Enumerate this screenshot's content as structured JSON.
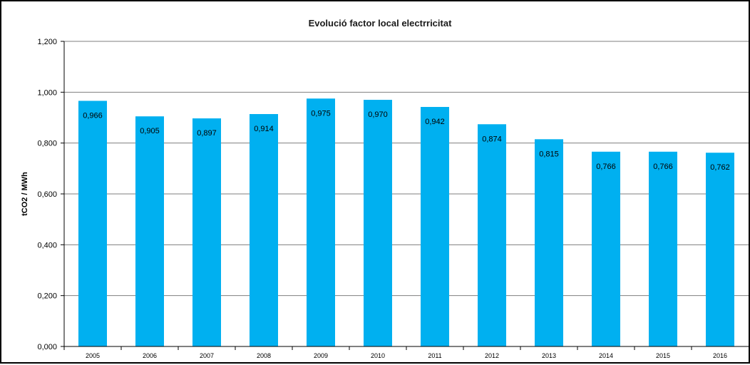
{
  "chart_data": {
    "type": "bar",
    "title": "Evolució factor local electrricitat",
    "xlabel": "",
    "ylabel": "tCO2 / MWh",
    "categories": [
      "2005",
      "2006",
      "2007",
      "2008",
      "2009",
      "2010",
      "2011",
      "2012",
      "2013",
      "2014",
      "2015",
      "2016"
    ],
    "values": [
      0.966,
      0.905,
      0.897,
      0.914,
      0.975,
      0.97,
      0.942,
      0.874,
      0.815,
      0.766,
      0.766,
      0.762
    ],
    "value_labels": [
      "0,966",
      "0,905",
      "0,897",
      "0,914",
      "0,975",
      "0,970",
      "0,942",
      "0,874",
      "0,815",
      "0,766",
      "0,766",
      "0,762"
    ],
    "ylim": [
      0,
      1.2
    ],
    "yticks": [
      0,
      0.2,
      0.4,
      0.6,
      0.8,
      1.0,
      1.2
    ],
    "ytick_labels": [
      "0,000",
      "0,200",
      "0,400",
      "0,600",
      "0,800",
      "1,000",
      "1,200"
    ],
    "grid": true,
    "bar_color": "#00b0f0",
    "grid_color": "#7f7f7f"
  }
}
